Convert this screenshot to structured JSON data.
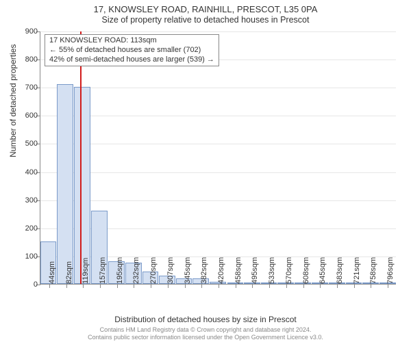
{
  "title_line1": "17, KNOWSLEY ROAD, RAINHILL, PRESCOT, L35 0PA",
  "title_line2": "Size of property relative to detached houses in Prescot",
  "y_axis_title": "Number of detached properties",
  "x_axis_title": "Distribution of detached houses by size in Prescot",
  "footer_line1": "Contains HM Land Registry data © Crown copyright and database right 2024.",
  "footer_line2": "Contains public sector information licensed under the Open Government Licence v3.0.",
  "info_box": {
    "line1": "17 KNOWSLEY ROAD: 113sqm",
    "line2": "← 55% of detached houses are smaller (702)",
    "line3": "42% of semi-detached houses are larger (539) →"
  },
  "chart": {
    "type": "histogram",
    "background_color": "#ffffff",
    "grid_color": "#e6e6e6",
    "axis_color": "#888888",
    "bar_fill": "#d4e0f2",
    "bar_border": "#7a9ac9",
    "refline_color": "#d11a1a",
    "ylim": [
      0,
      900
    ],
    "ytick_step": 100,
    "xlim": [
      25,
      815
    ],
    "xticks": [
      44,
      82,
      119,
      157,
      195,
      232,
      270,
      307,
      345,
      382,
      420,
      458,
      495,
      533,
      570,
      608,
      645,
      683,
      721,
      758,
      796
    ],
    "xtick_unit": "sqm",
    "bars": [
      {
        "x_start": 25,
        "x_end": 62,
        "value": 150
      },
      {
        "x_start": 62,
        "x_end": 100,
        "value": 710
      },
      {
        "x_start": 100,
        "x_end": 138,
        "value": 700
      },
      {
        "x_start": 138,
        "x_end": 176,
        "value": 260
      },
      {
        "x_start": 176,
        "x_end": 213,
        "value": 80
      },
      {
        "x_start": 213,
        "x_end": 251,
        "value": 75
      },
      {
        "x_start": 251,
        "x_end": 288,
        "value": 45
      },
      {
        "x_start": 288,
        "x_end": 326,
        "value": 30
      },
      {
        "x_start": 326,
        "x_end": 363,
        "value": 20
      },
      {
        "x_start": 363,
        "x_end": 401,
        "value": 20
      },
      {
        "x_start": 401,
        "x_end": 439,
        "value": 8
      },
      {
        "x_start": 439,
        "x_end": 476,
        "value": 5
      },
      {
        "x_start": 476,
        "x_end": 514,
        "value": 3
      },
      {
        "x_start": 514,
        "x_end": 551,
        "value": 3
      },
      {
        "x_start": 551,
        "x_end": 589,
        "value": 4
      },
      {
        "x_start": 589,
        "x_end": 626,
        "value": 2
      },
      {
        "x_start": 626,
        "x_end": 664,
        "value": 2
      },
      {
        "x_start": 664,
        "x_end": 702,
        "value": 2
      },
      {
        "x_start": 702,
        "x_end": 739,
        "value": 2
      },
      {
        "x_start": 739,
        "x_end": 777,
        "value": 1
      },
      {
        "x_start": 777,
        "x_end": 815,
        "value": 1
      }
    ],
    "reference_value_x": 113,
    "label_fontsize": 11,
    "title_fontsize": 13
  }
}
